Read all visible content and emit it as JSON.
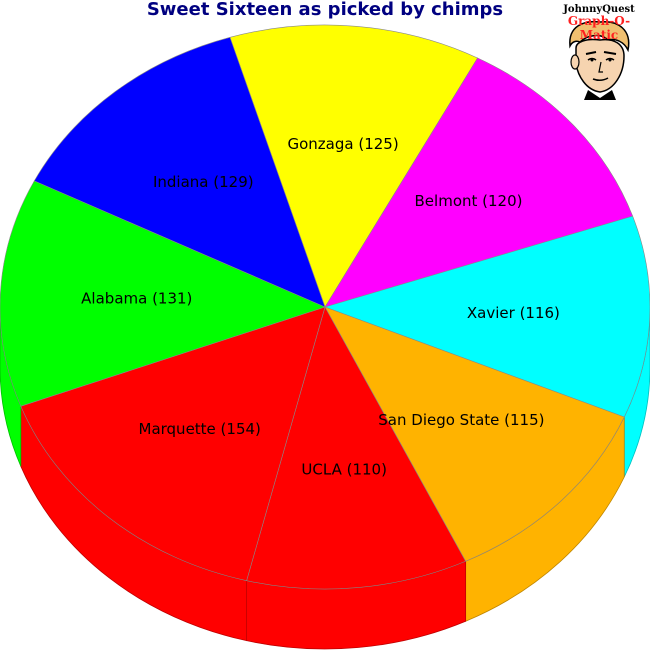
{
  "chart_data": {
    "type": "pie",
    "title": "Sweet Sixteen as picked by chimps",
    "categories": [
      "Gonzaga",
      "Belmont",
      "Xavier",
      "San Diego State",
      "UCLA",
      "Marquette",
      "Alabama",
      "Indiana"
    ],
    "values": [
      125,
      120,
      116,
      115,
      110,
      154,
      131,
      129
    ],
    "colors": [
      "#ffff00",
      "#ff00ff",
      "#00ffff",
      "#ffb300",
      "#ff0000",
      "#ff0000",
      "#00ff00",
      "#0000ff"
    ],
    "labels": [
      "Gonzaga (125)",
      "Belmont (120)",
      "Xavier (116)",
      "San Diego State (115)",
      "UCLA (110)",
      "Marquette (154)",
      "Alabama (131)",
      "Indiana (129)"
    ],
    "style": "3d"
  },
  "logo": {
    "line1": "JohnnyQuest",
    "line2": "Graph-O-Matic"
  }
}
